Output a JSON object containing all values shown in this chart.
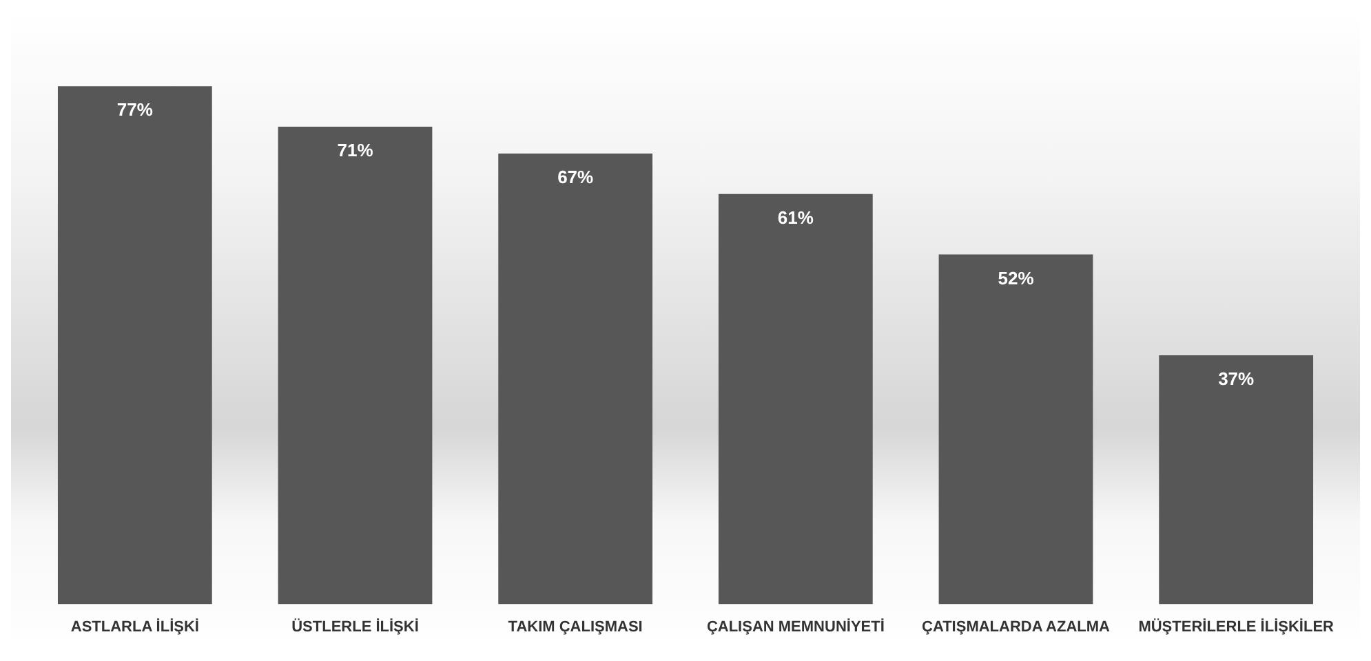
{
  "chart_data": {
    "type": "bar",
    "categories": [
      "ASTLARLA İLİŞKİ",
      "ÜSTLERLE İLİŞKİ",
      "TAKIM ÇALIŞMASI",
      "ÇALIŞAN MEMNUNİYETİ",
      "ÇATIŞMALARDA AZALMA",
      "MÜŞTERİLERLE İLİŞKİLER"
    ],
    "values": [
      77,
      71,
      67,
      61,
      52,
      37
    ],
    "value_labels": [
      "77%",
      "71%",
      "67%",
      "61%",
      "52%",
      "37%"
    ],
    "color": "#575757",
    "grid": false,
    "legend": false,
    "tick_labels": "x"
  }
}
